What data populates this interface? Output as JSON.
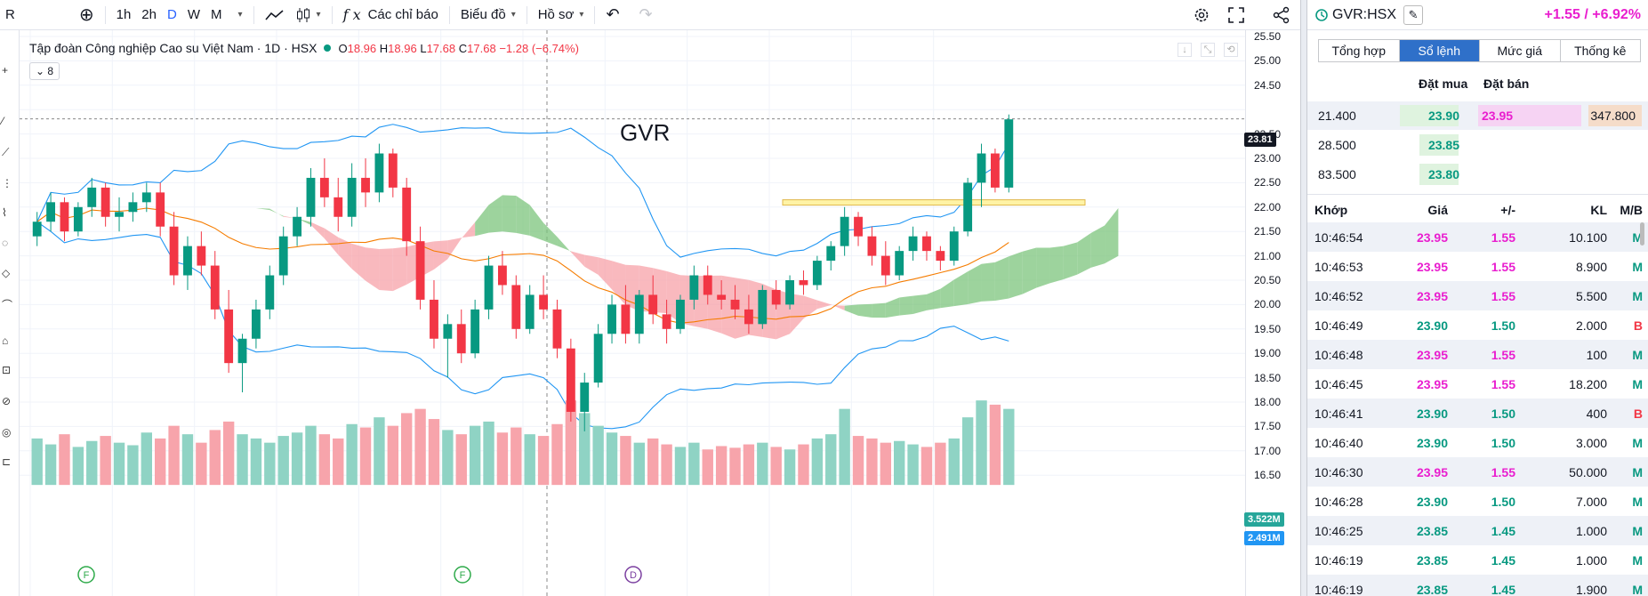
{
  "toolbar": {
    "symbol": "R",
    "add": "⊕",
    "intervals": [
      "1h",
      "2h",
      "D",
      "W",
      "M"
    ],
    "active_interval": "D",
    "indicators": "Các chỉ báo",
    "chart_type_label": "Biểu đồ",
    "profile": "Hồ sơ",
    "fx": "f x",
    "undo": "↶",
    "redo": "↷"
  },
  "legend": {
    "title": "Tập đoàn Công nghiệp Cao su Việt Nam · 1D · HSX",
    "o_label": "O",
    "o": "18.96",
    "h_label": "H",
    "h": "18.96",
    "l_label": "L",
    "l": "17.68",
    "c_label": "C",
    "c": "17.68",
    "change": "−1.28 (−6.74%)",
    "indicators_count": "8"
  },
  "annotation": "GVR",
  "price_axis": {
    "ticks": [
      "25.50",
      "25.00",
      "24.50",
      "23.81",
      "23.50",
      "23.00",
      "22.50",
      "22.00",
      "21.50",
      "21.00",
      "20.50",
      "20.00",
      "19.50",
      "19.00",
      "18.50",
      "18.00",
      "17.50",
      "17.00",
      "16.50"
    ],
    "last_price": "23.81",
    "vol1": "3.522M",
    "vol2": "2.491M",
    "colors": {
      "up": "#089981",
      "down": "#f23645",
      "price_badge": "#131722",
      "vol1_badge": "#26a69a",
      "vol2_badge": "#2196f3"
    }
  },
  "chart_data": {
    "type": "candlestick",
    "symbol": "GVR",
    "interval": "1D",
    "ylim": [
      16.3,
      25.6
    ],
    "markers": [
      "F",
      "F",
      "D"
    ],
    "candles": [
      [
        21.4,
        21.9,
        21.2,
        21.7
      ],
      [
        21.7,
        22.3,
        21.5,
        22.1
      ],
      [
        22.1,
        22.2,
        21.3,
        21.5
      ],
      [
        21.5,
        22.1,
        21.4,
        22.0
      ],
      [
        22.0,
        22.6,
        21.8,
        22.4
      ],
      [
        22.4,
        22.5,
        21.6,
        21.8
      ],
      [
        21.8,
        22.2,
        21.5,
        21.9
      ],
      [
        21.9,
        22.3,
        21.7,
        22.1
      ],
      [
        22.1,
        22.5,
        21.9,
        22.3
      ],
      [
        22.3,
        22.5,
        21.4,
        21.6
      ],
      [
        21.6,
        21.9,
        20.4,
        20.6
      ],
      [
        20.6,
        21.4,
        20.3,
        21.2
      ],
      [
        21.2,
        21.5,
        20.6,
        20.8
      ],
      [
        20.8,
        21.1,
        19.7,
        19.9
      ],
      [
        19.9,
        20.3,
        18.6,
        18.8
      ],
      [
        18.8,
        19.4,
        18.2,
        19.3
      ],
      [
        19.3,
        20.1,
        19.1,
        19.9
      ],
      [
        19.9,
        20.8,
        19.7,
        20.6
      ],
      [
        20.6,
        21.6,
        20.4,
        21.4
      ],
      [
        21.4,
        22.0,
        21.2,
        21.8
      ],
      [
        21.8,
        22.8,
        21.6,
        22.6
      ],
      [
        22.6,
        23.0,
        22.0,
        22.2
      ],
      [
        22.2,
        22.6,
        21.5,
        21.8
      ],
      [
        21.8,
        22.9,
        21.6,
        22.6
      ],
      [
        22.6,
        23.0,
        22.0,
        22.3
      ],
      [
        22.3,
        23.3,
        22.1,
        23.1
      ],
      [
        23.1,
        23.2,
        22.2,
        22.4
      ],
      [
        22.4,
        22.6,
        21.0,
        21.3
      ],
      [
        21.3,
        21.6,
        19.9,
        20.1
      ],
      [
        20.1,
        20.5,
        19.1,
        19.3
      ],
      [
        19.3,
        19.8,
        18.5,
        19.6
      ],
      [
        19.6,
        19.9,
        18.8,
        19.0
      ],
      [
        19.0,
        20.1,
        18.9,
        19.9
      ],
      [
        19.9,
        21.0,
        19.7,
        20.8
      ],
      [
        20.8,
        21.1,
        20.2,
        20.4
      ],
      [
        20.4,
        20.6,
        19.3,
        19.5
      ],
      [
        19.5,
        20.4,
        19.4,
        20.2
      ],
      [
        20.2,
        20.6,
        19.7,
        19.9
      ],
      [
        19.9,
        20.1,
        18.9,
        19.1
      ],
      [
        19.1,
        19.3,
        17.6,
        17.8
      ],
      [
        17.8,
        18.6,
        17.4,
        18.4
      ],
      [
        18.4,
        19.6,
        18.3,
        19.4
      ],
      [
        19.4,
        20.2,
        19.2,
        20.0
      ],
      [
        20.0,
        20.4,
        19.2,
        19.4
      ],
      [
        19.4,
        20.3,
        19.2,
        20.2
      ],
      [
        20.2,
        20.6,
        19.6,
        19.8
      ],
      [
        19.8,
        20.1,
        19.2,
        19.5
      ],
      [
        19.5,
        20.2,
        19.4,
        20.1
      ],
      [
        20.1,
        20.8,
        19.9,
        20.6
      ],
      [
        20.6,
        20.8,
        20.0,
        20.2
      ],
      [
        20.2,
        20.5,
        19.9,
        20.1
      ],
      [
        20.1,
        20.4,
        19.7,
        19.9
      ],
      [
        19.9,
        20.2,
        19.4,
        19.6
      ],
      [
        19.6,
        20.4,
        19.5,
        20.3
      ],
      [
        20.3,
        20.5,
        19.9,
        20.0
      ],
      [
        20.0,
        20.6,
        19.9,
        20.5
      ],
      [
        20.5,
        20.7,
        20.2,
        20.4
      ],
      [
        20.4,
        21.0,
        20.3,
        20.9
      ],
      [
        20.9,
        21.3,
        20.7,
        21.2
      ],
      [
        21.2,
        22.0,
        21.0,
        21.8
      ],
      [
        21.8,
        21.9,
        21.2,
        21.4
      ],
      [
        21.4,
        21.6,
        20.8,
        21.0
      ],
      [
        21.0,
        21.3,
        20.4,
        20.6
      ],
      [
        20.6,
        21.2,
        20.5,
        21.1
      ],
      [
        21.1,
        21.6,
        20.9,
        21.4
      ],
      [
        21.4,
        21.5,
        20.9,
        21.1
      ],
      [
        21.1,
        21.2,
        20.7,
        20.9
      ],
      [
        20.9,
        21.6,
        20.8,
        21.5
      ],
      [
        21.5,
        22.6,
        21.4,
        22.5
      ],
      [
        22.5,
        23.3,
        22.0,
        23.1
      ],
      [
        23.1,
        23.2,
        22.3,
        22.4
      ],
      [
        22.4,
        23.9,
        22.3,
        23.8
      ]
    ],
    "volume": [
      0.55,
      0.48,
      0.6,
      0.45,
      0.52,
      0.58,
      0.5,
      0.47,
      0.62,
      0.55,
      0.7,
      0.6,
      0.5,
      0.65,
      0.75,
      0.6,
      0.55,
      0.5,
      0.58,
      0.62,
      0.7,
      0.6,
      0.55,
      0.72,
      0.68,
      0.8,
      0.7,
      0.85,
      0.9,
      0.78,
      0.65,
      0.6,
      0.7,
      0.75,
      0.62,
      0.68,
      0.6,
      0.58,
      0.72,
      1.0,
      0.85,
      0.7,
      0.62,
      0.58,
      0.5,
      0.55,
      0.48,
      0.45,
      0.5,
      0.42,
      0.46,
      0.44,
      0.48,
      0.5,
      0.45,
      0.42,
      0.48,
      0.55,
      0.6,
      0.9,
      0.58,
      0.55,
      0.5,
      0.52,
      0.48,
      0.45,
      0.5,
      0.55,
      0.8,
      1.0,
      0.95,
      0.9
    ]
  },
  "panel": {
    "symbol": "GVR:HSX",
    "change": "+1.55 / +6.92%",
    "tabs": [
      "Tổng hợp",
      "Sổ lệnh",
      "Mức giá",
      "Thống kê"
    ],
    "active_tab": "Sổ lệnh",
    "bid_header": "Đặt mua",
    "ask_header": "Đặt bán",
    "orderbook": [
      {
        "bid_vol": "21.400",
        "bid": "23.90",
        "ask": "23.95",
        "ask_vol": "347.800"
      },
      {
        "bid_vol": "28.500",
        "bid": "23.85",
        "ask": "",
        "ask_vol": ""
      },
      {
        "bid_vol": "83.500",
        "bid": "23.80",
        "ask": "",
        "ask_vol": ""
      }
    ],
    "trades_header": [
      "Khớp",
      "Giá",
      "+/-",
      "KL",
      "M/B"
    ],
    "trades": [
      [
        "10:46:54",
        "23.95",
        "1.55",
        "10.100",
        "M"
      ],
      [
        "10:46:53",
        "23.95",
        "1.55",
        "8.900",
        "M"
      ],
      [
        "10:46:52",
        "23.95",
        "1.55",
        "5.500",
        "M"
      ],
      [
        "10:46:49",
        "23.90",
        "1.50",
        "2.000",
        "B"
      ],
      [
        "10:46:48",
        "23.95",
        "1.55",
        "100",
        "M"
      ],
      [
        "10:46:45",
        "23.95",
        "1.55",
        "18.200",
        "M"
      ],
      [
        "10:46:41",
        "23.90",
        "1.50",
        "400",
        "B"
      ],
      [
        "10:46:40",
        "23.90",
        "1.50",
        "3.000",
        "M"
      ],
      [
        "10:46:30",
        "23.95",
        "1.55",
        "50.000",
        "M"
      ],
      [
        "10:46:28",
        "23.90",
        "1.50",
        "7.000",
        "M"
      ],
      [
        "10:46:25",
        "23.85",
        "1.45",
        "1.000",
        "M"
      ],
      [
        "10:46:19",
        "23.85",
        "1.45",
        "1.000",
        "M"
      ],
      [
        "10:46:19",
        "23.85",
        "1.45",
        "1.900",
        "M"
      ]
    ]
  }
}
